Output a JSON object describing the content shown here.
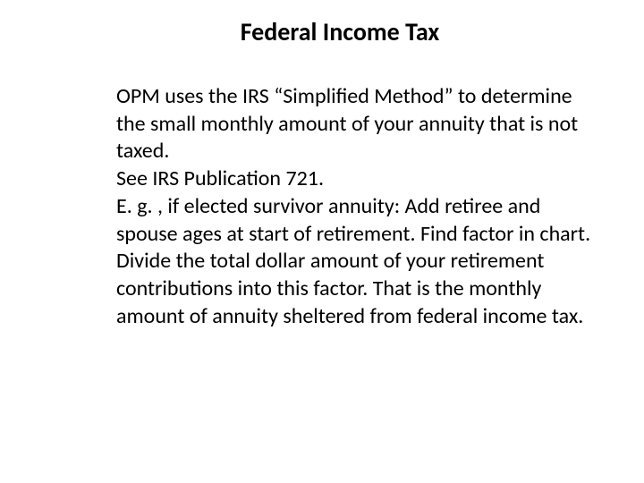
{
  "title": "Federal Income Tax",
  "paragraphs": {
    "p1": "OPM uses the IRS “Simplified Method” to determine the small monthly amount of your annuity that is not taxed.",
    "p2": "See IRS Publication 721.",
    "p3": "E. g. , if elected survivor annuity: Add retiree and spouse ages at start of retirement. Find factor in chart. Divide the total dollar amount of your retirement contributions into this factor. That is the monthly amount of annuity sheltered from federal income tax."
  },
  "colors": {
    "background": "#ffffff",
    "text": "#000000"
  },
  "typography": {
    "title_fontsize": 28,
    "title_weight": "bold",
    "body_fontsize": 24,
    "font_family": "Calibri"
  }
}
